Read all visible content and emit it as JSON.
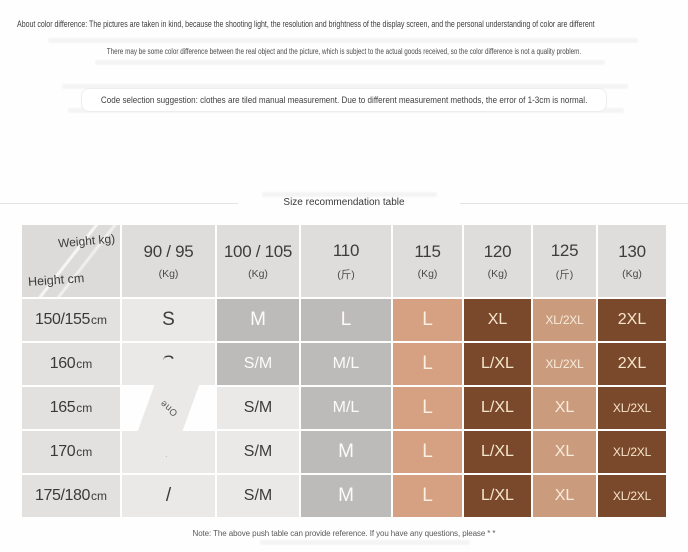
{
  "page": {
    "disclaimer_line1": "About color difference: The pictures are taken in kind, because the shooting light, the resolution and brightness of the display screen, and the personal understanding of color are different",
    "disclaimer_line2": "There may be some color difference between the real object and the picture, which is subject to the actual goods received, so the color difference is not a quality problem.",
    "suggestion": "Code selection suggestion: clothes are tiled manual measurement. Due to different measurement methods, the error of 1-3cm is normal.",
    "table_title": "Size recommendation table",
    "note": "Note: The above push table can provide reference. If you have any questions, please * *"
  },
  "size_table": {
    "corner": {
      "top_label": "Weight kg)",
      "bottom_label": "Height cm"
    },
    "weight_columns": [
      {
        "value": "90 / 95",
        "unit": "(Kg)"
      },
      {
        "value": "100 / 105",
        "unit": "(Kg)"
      },
      {
        "value": "110",
        "unit": "(斤)"
      },
      {
        "value": "115",
        "unit": "(Kg)"
      },
      {
        "value": "120",
        "unit": "(Kg)"
      },
      {
        "value": "125",
        "unit": "(斤)"
      },
      {
        "value": "130",
        "unit": "(Kg)"
      }
    ],
    "rows": [
      {
        "height": "150/155",
        "height_unit": "cm",
        "sizes": [
          "S",
          "M",
          "L",
          "L",
          "XL",
          "XL/2XL",
          "2XL"
        ],
        "styles": [
          "light",
          "gray",
          "gray",
          "tan",
          "brown",
          "tan2",
          "brown"
        ]
      },
      {
        "height": "160",
        "height_unit": "cm",
        "sizes": [
          "S",
          "S/M",
          "M/L",
          "L",
          "L/XL",
          "XL/2XL",
          "2XL"
        ],
        "styles": [
          "light",
          "gray",
          "gray",
          "tan",
          "brown",
          "tan2",
          "brown"
        ]
      },
      {
        "height": "165",
        "height_unit": "cm",
        "sizes": [
          "One",
          "S/M",
          "M/L",
          "L",
          "L/XL",
          "XL",
          "XL/2XL"
        ],
        "styles": [
          "light one",
          "light",
          "gray",
          "tan",
          "brown",
          "tan2",
          "brown"
        ]
      },
      {
        "height": "170",
        "height_unit": "cm",
        "sizes": [
          "/",
          "S/M",
          "M",
          "L",
          "L/XL",
          "XL",
          "XL/2XL"
        ],
        "styles": [
          "light",
          "light",
          "gray",
          "tan",
          "brown",
          "tan2",
          "brown"
        ]
      },
      {
        "height": "175/180",
        "height_unit": "cm",
        "sizes": [
          "/",
          "S/M",
          "M",
          "L",
          "L/XL",
          "XL",
          "XL/2XL"
        ],
        "styles": [
          "light",
          "light",
          "gray",
          "tan",
          "brown",
          "tan2",
          "brown"
        ]
      }
    ],
    "colors": {
      "header_bg": "#dedddc",
      "row_label_bg": "#e2e1df",
      "light_cell_bg": "#eae9e7",
      "gray_cell_bg": "#bdbaba",
      "tan_cell_bg": "#d6a083",
      "tan2_cell_bg": "#cb9b7d",
      "brown_cell_bg": "#7a492b",
      "dark_text": "#3c3c3c",
      "light_text": "#fcfbfa",
      "cream_text": "#f7e5cb"
    }
  }
}
